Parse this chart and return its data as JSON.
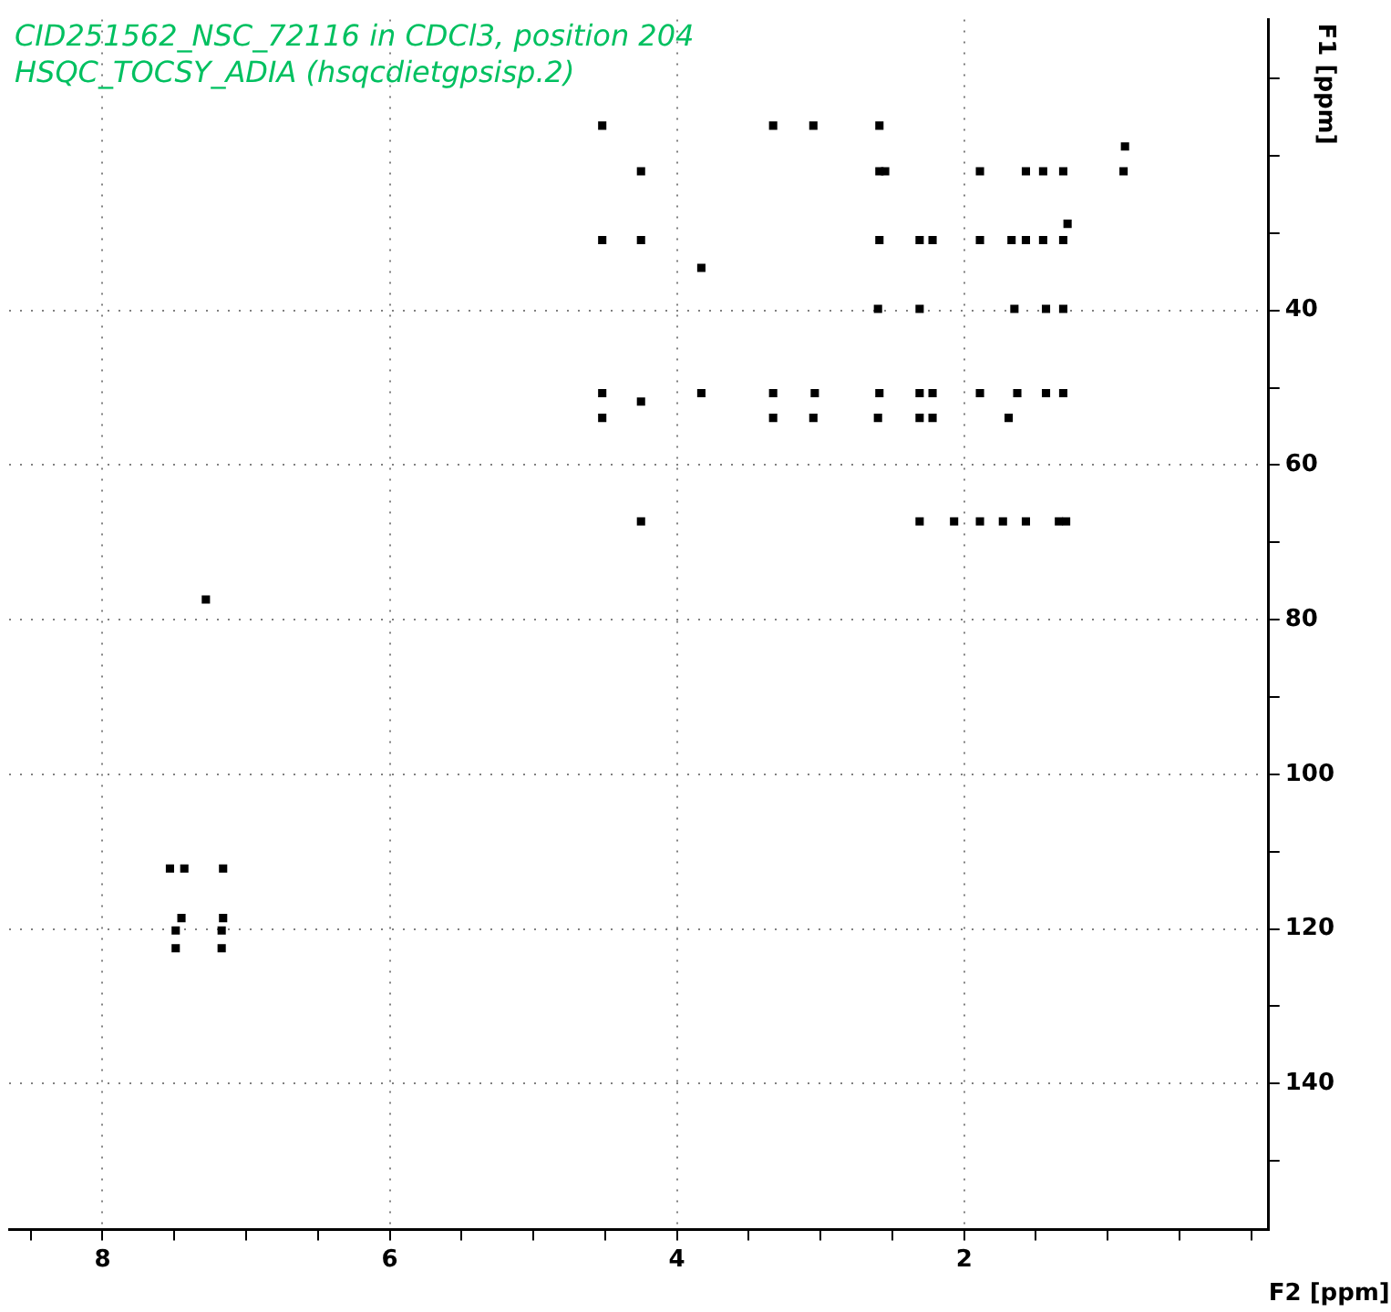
{
  "chart_data": {
    "type": "scatter",
    "title": "CID251562_NSC_72116 in CDCl3, position 204",
    "subtitle": "HSQC_TOCSY_ADIA (hsqcdietgpsisp.2)",
    "xlabel": "F2 [ppm]",
    "ylabel": "F1 [ppm]",
    "xlim": [
      8.65,
      -0.12
    ],
    "ylim": [
      158.9,
      2.4
    ],
    "xticks": [
      {
        "value": 8.5,
        "label": null
      },
      8,
      {
        "value": 7.5,
        "label": null
      },
      {
        "value": 7,
        "label": null
      },
      {
        "value": 6.5,
        "label": null
      },
      6,
      {
        "value": 5.5,
        "label": null
      },
      {
        "value": 5,
        "label": null
      },
      {
        "value": 4.5,
        "label": null
      },
      4,
      {
        "value": 3.5,
        "label": null
      },
      {
        "value": 3,
        "label": null
      },
      {
        "value": 2.5,
        "label": null
      },
      2,
      {
        "value": 1.5,
        "label": null
      },
      {
        "value": 1,
        "label": null
      },
      {
        "value": 0.5,
        "label": null
      },
      {
        "value": 0,
        "label": null
      }
    ],
    "yticks": [
      {
        "value": 10,
        "label": null
      },
      {
        "value": 20,
        "label": null
      },
      {
        "value": 30,
        "label": null
      },
      40,
      {
        "value": 50,
        "label": null
      },
      60,
      {
        "value": 70,
        "label": null
      },
      80,
      {
        "value": 90,
        "label": null
      },
      100,
      {
        "value": 110,
        "label": null
      },
      120,
      {
        "value": 130,
        "label": null
      },
      140,
      {
        "value": 150,
        "label": null
      }
    ],
    "grid": true,
    "marker": "square",
    "legend": false,
    "series": [
      {
        "color": "#000000",
        "x": [
          4.52,
          3.33,
          3.05,
          2.59,
          0.88,
          4.25,
          2.59,
          2.55,
          1.89,
          1.57,
          1.45,
          1.31,
          0.89,
          1.28,
          4.52,
          4.25,
          2.59,
          2.31,
          2.22,
          1.89,
          1.67,
          1.57,
          1.45,
          1.31,
          3.83,
          2.6,
          2.31,
          1.65,
          1.43,
          1.31,
          4.52,
          3.33,
          3.04,
          2.59,
          2.31,
          2.22,
          1.89,
          1.63,
          1.43,
          1.31,
          3.83,
          4.25,
          4.52,
          3.33,
          3.05,
          2.6,
          2.31,
          2.22,
          1.69,
          4.25,
          2.31,
          2.07,
          1.89,
          1.73,
          1.57,
          1.34,
          1.29,
          7.28,
          7.53,
          7.43,
          7.16,
          7.45,
          7.16,
          7.49,
          7.17,
          7.49,
          7.17
        ],
        "values": [
          16.1,
          16.1,
          16.1,
          16.1,
          18.8,
          22.0,
          22.0,
          22.0,
          22.0,
          22.0,
          22.0,
          22.0,
          22.0,
          28.8,
          30.9,
          30.9,
          30.9,
          30.9,
          30.9,
          30.9,
          30.9,
          30.9,
          30.9,
          30.9,
          34.5,
          39.8,
          39.8,
          39.8,
          39.8,
          39.8,
          50.7,
          50.7,
          50.7,
          50.7,
          50.7,
          50.7,
          50.7,
          50.7,
          50.7,
          50.7,
          50.7,
          51.8,
          53.9,
          53.9,
          53.9,
          53.9,
          53.9,
          53.9,
          53.9,
          67.3,
          67.3,
          67.3,
          67.3,
          67.3,
          67.3,
          67.3,
          67.3,
          77.4,
          112.2,
          112.2,
          112.2,
          118.6,
          118.6,
          120.2,
          120.2,
          122.5,
          122.5
        ]
      }
    ]
  }
}
